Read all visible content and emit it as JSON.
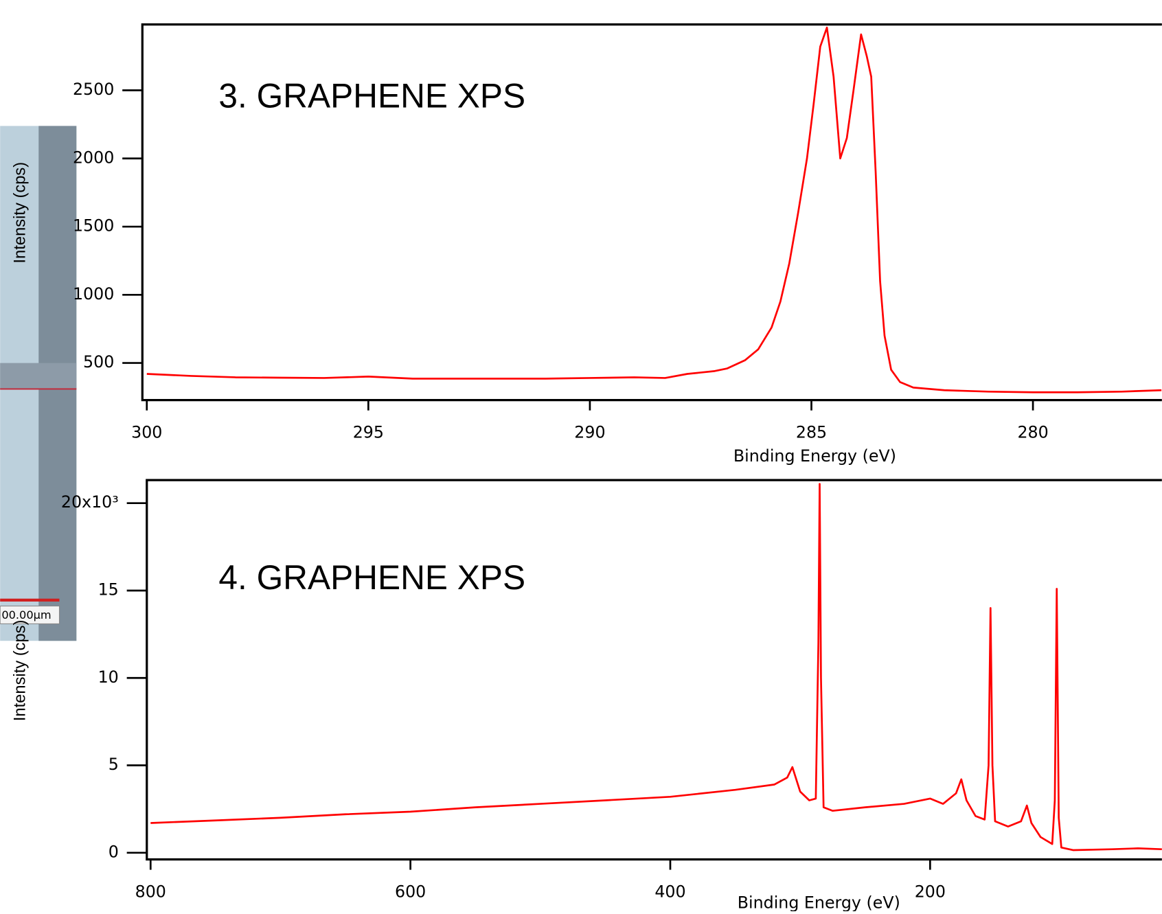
{
  "inset_scale_label": "00.00µm",
  "chart_data": [
    {
      "type": "line",
      "title": "3. GRAPHENE XPS",
      "xlabel": "Binding Energy (eV)",
      "ylabel": "Intensity (cps)",
      "x": [
        300,
        299,
        298,
        297,
        296,
        295,
        294,
        293,
        292,
        291,
        290,
        289,
        288.3,
        287.8,
        287.2,
        286.9,
        286.5,
        286.2,
        285.9,
        285.7,
        285.5,
        285.3,
        285.1,
        284.95,
        284.8,
        284.65,
        284.5,
        284.35,
        284.2,
        284.05,
        283.88,
        283.75,
        283.65,
        283.55,
        283.45,
        283.35,
        283.2,
        283.0,
        282.7,
        282,
        281,
        280,
        279,
        278,
        277.1
      ],
      "values": [
        420,
        405,
        395,
        392,
        390,
        400,
        385,
        385,
        385,
        385,
        390,
        395,
        390,
        420,
        440,
        460,
        520,
        600,
        760,
        950,
        1230,
        1600,
        2000,
        2400,
        2820,
        2960,
        2600,
        2000,
        2150,
        2500,
        2910,
        2750,
        2600,
        1900,
        1100,
        700,
        450,
        360,
        320,
        300,
        290,
        285,
        285,
        290,
        300
      ],
      "color": "#ff0000",
      "xlim": [
        300.1,
        277.09
      ],
      "ylim": [
        228,
        2983
      ],
      "xticks": [
        300,
        295,
        290,
        285,
        280
      ],
      "yticks": [
        500,
        1000,
        1500,
        2000,
        2500
      ]
    },
    {
      "type": "line",
      "title": "4. GRAPHENE XPS",
      "xlabel": "Binding Energy (eV)",
      "ylabel": "Intensity (cps)",
      "x": [
        800,
        750,
        700,
        650,
        600,
        550,
        500,
        450,
        400,
        350,
        320,
        310,
        306,
        300,
        293,
        288,
        286,
        285,
        284,
        282,
        275,
        250,
        220,
        200,
        190,
        180,
        176,
        172,
        165,
        158,
        155,
        153.5,
        152,
        150,
        140,
        130,
        125.5,
        122,
        115,
        106,
        104,
        102.5,
        101,
        99,
        90,
        60,
        40,
        21.6
      ],
      "values": [
        1.7,
        1.85,
        2.0,
        2.2,
        2.35,
        2.6,
        2.8,
        3.0,
        3.2,
        3.6,
        3.9,
        4.3,
        4.9,
        3.5,
        3.0,
        3.1,
        12,
        21.1,
        10,
        2.6,
        2.4,
        2.6,
        2.8,
        3.1,
        2.8,
        3.4,
        4.2,
        3.0,
        2.1,
        1.9,
        5,
        14.0,
        5,
        1.8,
        1.5,
        1.8,
        2.7,
        1.7,
        0.9,
        0.5,
        3,
        15.1,
        2,
        0.3,
        0.15,
        0.2,
        0.25,
        0.2
      ],
      "color": "#ff0000",
      "xlim": [
        802.9,
        21.6
      ],
      "ylim": [
        -0.38,
        21.32
      ],
      "xticks": [
        800,
        600,
        400,
        200
      ],
      "yticks": [
        0,
        5,
        10,
        15,
        {
          "value": 20,
          "label": "20x10³"
        }
      ]
    }
  ]
}
